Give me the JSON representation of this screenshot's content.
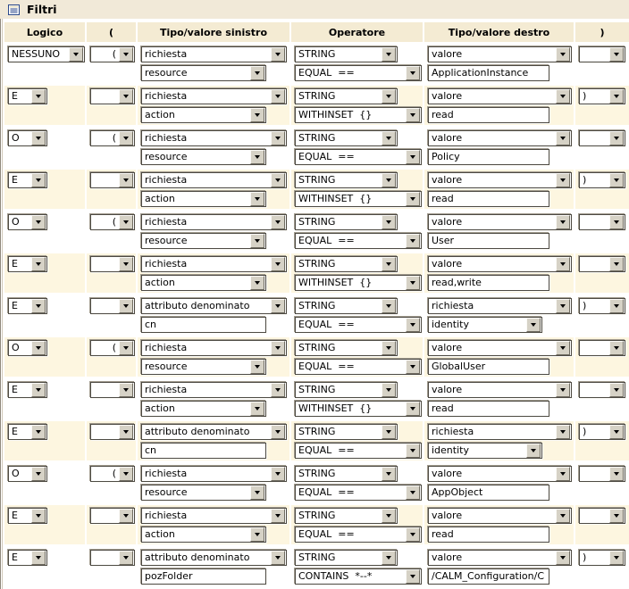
{
  "title": "Filtri",
  "icons": {
    "panel_icon": "filters-list-icon",
    "combo_icon": "dropdown-arrow-icon"
  },
  "colors": {
    "titlebar_bg": "#f1e9d8",
    "header_bg": "#f4ebd3",
    "row_alt_bg": "#fdf6e0",
    "row_bg": "#ffffff",
    "icon_blue": "#2c4a8c"
  },
  "columns": [
    "Logico",
    "(",
    "Tipo/valore sinistro",
    "Operatore",
    "Tipo/valore destro",
    ")"
  ],
  "rows": [
    {
      "logico": "NESSUNO",
      "open": "(",
      "close": "",
      "left": {
        "type": "richiesta",
        "control": "select",
        "value": "resource"
      },
      "op": {
        "type": "STRING",
        "operator": "EQUAL  =="
      },
      "right": {
        "type": "valore",
        "control": "input",
        "value": "ApplicationInstance"
      }
    },
    {
      "logico": "E",
      "open": "",
      "close": ")",
      "left": {
        "type": "richiesta",
        "control": "select",
        "value": "action"
      },
      "op": {
        "type": "STRING",
        "operator": "WITHINSET  {}"
      },
      "right": {
        "type": "valore",
        "control": "input",
        "value": "read"
      }
    },
    {
      "logico": "O",
      "open": "(",
      "close": "",
      "left": {
        "type": "richiesta",
        "control": "select",
        "value": "resource"
      },
      "op": {
        "type": "STRING",
        "operator": "EQUAL  =="
      },
      "right": {
        "type": "valore",
        "control": "input",
        "value": "Policy"
      }
    },
    {
      "logico": "E",
      "open": "",
      "close": ")",
      "left": {
        "type": "richiesta",
        "control": "select",
        "value": "action"
      },
      "op": {
        "type": "STRING",
        "operator": "WITHINSET  {}"
      },
      "right": {
        "type": "valore",
        "control": "input",
        "value": "read"
      }
    },
    {
      "logico": "O",
      "open": "(",
      "close": "",
      "left": {
        "type": "richiesta",
        "control": "select",
        "value": "resource"
      },
      "op": {
        "type": "STRING",
        "operator": "EQUAL  =="
      },
      "right": {
        "type": "valore",
        "control": "input",
        "value": "User"
      }
    },
    {
      "logico": "E",
      "open": "",
      "close": "",
      "left": {
        "type": "richiesta",
        "control": "select",
        "value": "action"
      },
      "op": {
        "type": "STRING",
        "operator": "WITHINSET  {}"
      },
      "right": {
        "type": "valore",
        "control": "input",
        "value": "read,write"
      }
    },
    {
      "logico": "E",
      "open": "",
      "close": ")",
      "left": {
        "type": "attributo denominato",
        "control": "input",
        "value": "cn"
      },
      "op": {
        "type": "STRING",
        "operator": "EQUAL  =="
      },
      "right": {
        "type": "richiesta",
        "control": "select",
        "value": "identity"
      }
    },
    {
      "logico": "O",
      "open": "(",
      "close": "",
      "left": {
        "type": "richiesta",
        "control": "select",
        "value": "resource"
      },
      "op": {
        "type": "STRING",
        "operator": "EQUAL  =="
      },
      "right": {
        "type": "valore",
        "control": "input",
        "value": "GlobalUser"
      }
    },
    {
      "logico": "E",
      "open": "",
      "close": "",
      "left": {
        "type": "richiesta",
        "control": "select",
        "value": "action"
      },
      "op": {
        "type": "STRING",
        "operator": "WITHINSET  {}"
      },
      "right": {
        "type": "valore",
        "control": "input",
        "value": "read"
      }
    },
    {
      "logico": "E",
      "open": "",
      "close": ")",
      "left": {
        "type": "attributo denominato",
        "control": "input",
        "value": "cn"
      },
      "op": {
        "type": "STRING",
        "operator": "EQUAL  =="
      },
      "right": {
        "type": "richiesta",
        "control": "select",
        "value": "identity"
      }
    },
    {
      "logico": "O",
      "open": "(",
      "close": "",
      "left": {
        "type": "richiesta",
        "control": "select",
        "value": "resource"
      },
      "op": {
        "type": "STRING",
        "operator": "EQUAL  =="
      },
      "right": {
        "type": "valore",
        "control": "input",
        "value": "AppObject"
      }
    },
    {
      "logico": "E",
      "open": "",
      "close": "",
      "left": {
        "type": "richiesta",
        "control": "select",
        "value": "action"
      },
      "op": {
        "type": "STRING",
        "operator": "EQUAL  =="
      },
      "right": {
        "type": "valore",
        "control": "input",
        "value": "read"
      }
    },
    {
      "logico": "E",
      "open": "",
      "close": ")",
      "left": {
        "type": "attributo denominato",
        "control": "input",
        "value": "pozFolder"
      },
      "op": {
        "type": "STRING",
        "operator": "CONTAINS  *--*"
      },
      "right": {
        "type": "valore",
        "control": "input",
        "value": "/CALM_Configuration/C"
      }
    }
  ]
}
